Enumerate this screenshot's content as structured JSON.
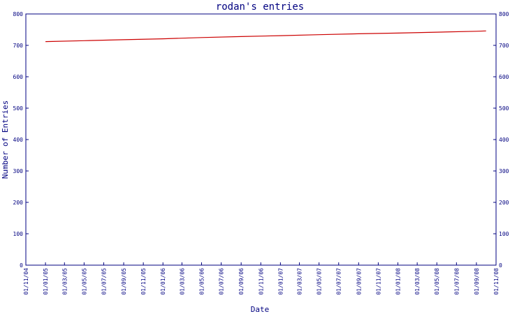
{
  "chart_data": {
    "type": "line",
    "title": "rodan's entries",
    "xlabel": "Date",
    "ylabel": "Number of Entries",
    "ylim": [
      0,
      800
    ],
    "y_ticks": [
      "0",
      "100",
      "200",
      "300",
      "400",
      "500",
      "600",
      "700",
      "800"
    ],
    "x_tick_labels": [
      "01/11/04",
      "01/01/05",
      "01/03/05",
      "01/05/05",
      "01/07/05",
      "01/09/05",
      "01/11/05",
      "01/01/06",
      "01/03/06",
      "01/05/06",
      "01/07/06",
      "01/09/06",
      "01/11/06",
      "01/01/07",
      "01/03/07",
      "01/05/07",
      "01/07/07",
      "01/09/07",
      "01/11/07",
      "01/01/08",
      "01/03/08",
      "01/05/08",
      "01/07/08",
      "01/09/08",
      "01/11/08"
    ],
    "grid": false,
    "colors": {
      "axis": "#000080",
      "line": "#cc0000",
      "text": "#000080"
    },
    "series": [
      {
        "points": [
          {
            "x": "01/01/05",
            "y": 712
          },
          {
            "x": "01/05/05",
            "y": 715
          },
          {
            "x": "01/09/05",
            "y": 718
          },
          {
            "x": "01/01/06",
            "y": 721
          },
          {
            "x": "01/05/06",
            "y": 725
          },
          {
            "x": "01/09/06",
            "y": 728
          },
          {
            "x": "01/01/07",
            "y": 731
          },
          {
            "x": "01/05/07",
            "y": 734
          },
          {
            "x": "01/09/07",
            "y": 737
          },
          {
            "x": "01/01/08",
            "y": 739
          },
          {
            "x": "01/05/08",
            "y": 742
          },
          {
            "x": "01/09/08",
            "y": 745
          },
          {
            "x": "01/10/08",
            "y": 746
          }
        ]
      }
    ]
  }
}
